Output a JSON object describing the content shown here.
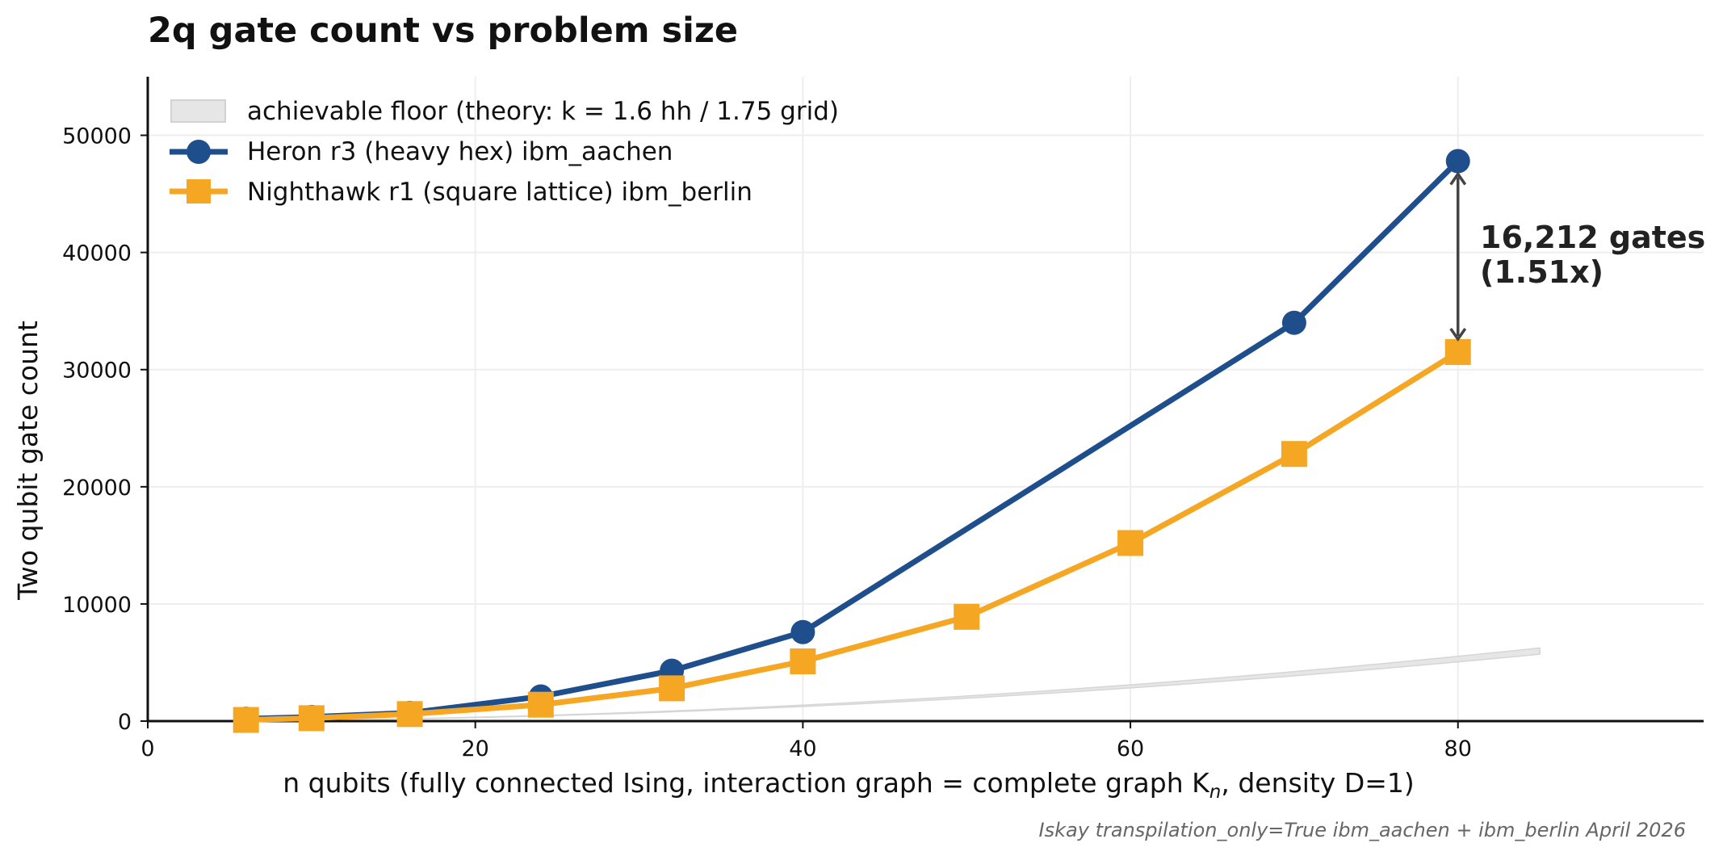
{
  "chart_data": {
    "type": "line",
    "title": "2q gate count vs problem size",
    "xlabel": "n qubits   (fully connected Ising,  interaction graph = complete graph K",
    "xlabel_sub": "n",
    "xlabel_tail": ",  density D=1)",
    "ylabel": "Two qubit gate count",
    "xlim": [
      0,
      95
    ],
    "ylim": [
      0,
      55000
    ],
    "x_ticks": [
      0,
      20,
      40,
      60,
      80
    ],
    "y_ticks": [
      0,
      10000,
      20000,
      30000,
      40000,
      50000
    ],
    "grid": true,
    "legend_position": "top-left",
    "series": [
      {
        "name": "Heron r3 (heavy hex)   ibm_aachen",
        "color": "#1f4e8c",
        "marker": "circle",
        "x": [
          6,
          10,
          16,
          24,
          32,
          40,
          70,
          80
        ],
        "y": [
          200,
          350,
          700,
          2100,
          4300,
          7600,
          34000,
          47800
        ]
      },
      {
        "name": "Nighthawk r1 (square lattice)   ibm_berlin",
        "color": "#f5a623",
        "marker": "square",
        "x": [
          6,
          10,
          16,
          24,
          32,
          40,
          50,
          60,
          70,
          80
        ],
        "y": [
          100,
          250,
          600,
          1400,
          2800,
          5100,
          8900,
          15200,
          22800,
          31500
        ]
      }
    ],
    "band": {
      "name": "achievable floor (theory: k = 1.6 hh / 1.75 grid)",
      "color": "#e6e6e6",
      "x_range": [
        6,
        85
      ],
      "k_low": 1.6,
      "k_high": 1.75
    },
    "annotation": {
      "line1": "16,212 gates",
      "line2": "(1.51x)",
      "x": 80,
      "y_from": 47800,
      "y_to": 31500
    },
    "footer": "Iskay transpilation_only=True   ibm_aachen + ibm_berlin   April 2026"
  }
}
